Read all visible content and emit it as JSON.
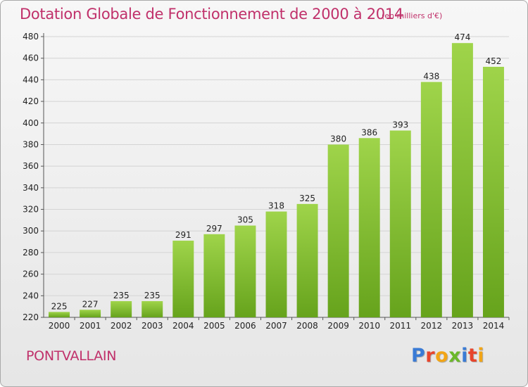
{
  "header": {
    "title": "Dotation Globale de Fonctionnement de 2000 à 2014",
    "subtitle": "(en milliers d'€)"
  },
  "footer": {
    "commune": "PONTVALLAIN",
    "logo": "Proxiti",
    "logo_colors": [
      "#3a7bd5",
      "#e8452c",
      "#f2a516",
      "#6bb82a",
      "#3a7bd5",
      "#e8452c",
      "#f2a516"
    ]
  },
  "chart_data": {
    "type": "bar",
    "title": "Dotation Globale de Fonctionnement de 2000 à 2014",
    "subtitle": "(en milliers d'€)",
    "xlabel": "",
    "ylabel": "",
    "categories": [
      "2000",
      "2001",
      "2002",
      "2003",
      "2004",
      "2005",
      "2006",
      "2007",
      "2008",
      "2009",
      "2010",
      "2011",
      "2012",
      "2013",
      "2014"
    ],
    "values": [
      225,
      227,
      235,
      235,
      291,
      297,
      305,
      318,
      325,
      380,
      386,
      393,
      438,
      474,
      452
    ],
    "ylim": [
      220,
      480
    ],
    "yticks": [
      220,
      240,
      260,
      280,
      300,
      320,
      340,
      360,
      380,
      400,
      420,
      440,
      460,
      480
    ],
    "grid": true,
    "bar_color_top": "#9fd44a",
    "bar_color_bottom": "#66a31c"
  }
}
